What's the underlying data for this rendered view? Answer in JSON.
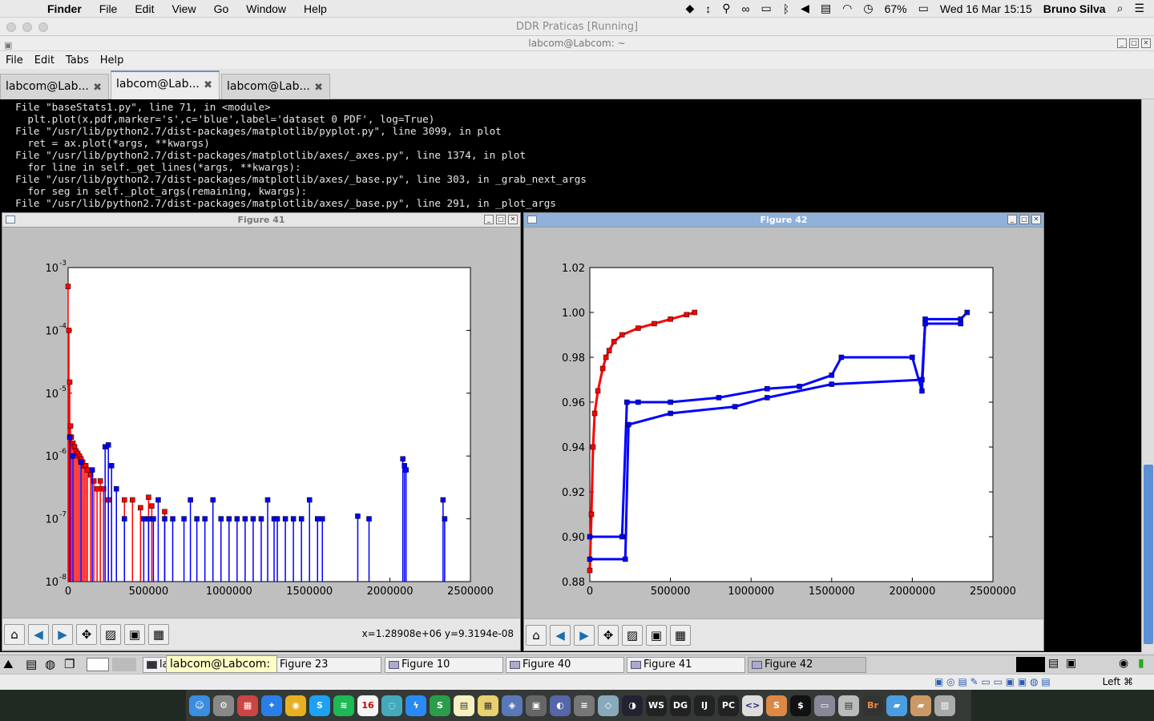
{
  "mac_menubar": {
    "app": "Finder",
    "items": [
      "File",
      "Edit",
      "View",
      "Go",
      "Window",
      "Help"
    ],
    "battery": "67%",
    "datetime": "Wed 16 Mar  15:15",
    "user": "Bruno Silva"
  },
  "vm_window": {
    "title": "DDR Praticas [Running]"
  },
  "terminal": {
    "title": "labcom@Labcom: ~",
    "menu": [
      "File",
      "Edit",
      "Tabs",
      "Help"
    ],
    "tabs": [
      {
        "label": "labcom@Lab..."
      },
      {
        "label": "labcom@Lab..."
      },
      {
        "label": "labcom@Lab..."
      }
    ],
    "lines": [
      "  File \"baseStats1.py\", line 71, in <module>",
      "    plt.plot(x,pdf,marker='s',c='blue',label='dataset 0 PDF', log=True)",
      "  File \"/usr/lib/python2.7/dist-packages/matplotlib/pyplot.py\", line 3099, in plot",
      "    ret = ax.plot(*args, **kwargs)",
      "  File \"/usr/lib/python2.7/dist-packages/matplotlib/axes/_axes.py\", line 1374, in plot",
      "    for line in self._get_lines(*args, **kwargs):",
      "  File \"/usr/lib/python2.7/dist-packages/matplotlib/axes/_base.py\", line 303, in _grab_next_args",
      "    for seg in self._plot_args(remaining, kwargs):",
      "  File \"/usr/lib/python2.7/dist-packages/matplotlib/axes/_base.py\", line 291, in _plot_args"
    ]
  },
  "figure41": {
    "title": "Figure 41",
    "coords": "x=1.28908e+06  y=9.3194e-08"
  },
  "figure42": {
    "title": "Figure 42"
  },
  "taskbar": {
    "items": [
      "labcom@Labcom: ~",
      "Figure 23",
      "Figure 10",
      "Figure 40",
      "Figure 41",
      "Figure 42"
    ],
    "tooltip": "labcom@Labcom: ~"
  },
  "statusbar": {
    "right_label": "Left ⌘"
  },
  "chart_data": [
    {
      "type": "scatter",
      "figure": "Figure 41",
      "yscale": "log",
      "xlim": [
        0,
        2500000
      ],
      "ylim": [
        1e-08,
        0.001
      ],
      "xticks": [
        "0",
        "500000",
        "1000000",
        "1500000",
        "2000000",
        "2500000"
      ],
      "yticks": [
        {
          "base": "10",
          "exp": "-3"
        },
        {
          "base": "10",
          "exp": "-4"
        },
        {
          "base": "10",
          "exp": "-5"
        },
        {
          "base": "10",
          "exp": "-6"
        },
        {
          "base": "10",
          "exp": "-7"
        },
        {
          "base": "10",
          "exp": "-8"
        }
      ],
      "series": [
        {
          "color": "#ff0000",
          "x": [
            0,
            5000,
            10000,
            15000,
            20000,
            30000,
            40000,
            50000,
            60000,
            70000,
            80000,
            90000,
            100000,
            110000,
            120000,
            140000,
            160000,
            180000,
            200000,
            220000,
            250000,
            300000,
            350000,
            400000,
            450000,
            500000,
            520000,
            600000
          ],
          "y": [
            0.0005,
            0.0001,
            1.5e-05,
            3e-06,
            2e-06,
            1.6e-06,
            1.4e-06,
            1.2e-06,
            1.1e-06,
            1e-06,
            9e-07,
            8e-07,
            7e-07,
            7e-07,
            6e-07,
            5e-07,
            4e-07,
            3e-07,
            4e-07,
            3e-07,
            2e-07,
            3e-07,
            2e-07,
            2e-07,
            1.5e-07,
            2.2e-07,
            1.6e-07,
            1.3e-07
          ]
        },
        {
          "color": "#0000ff",
          "x": [
            10000,
            30000,
            80000,
            150000,
            230000,
            250000,
            270000,
            300000,
            350000,
            470000,
            500000,
            530000,
            560000,
            600000,
            650000,
            720000,
            760000,
            800000,
            850000,
            900000,
            950000,
            1000000,
            1050000,
            1100000,
            1150000,
            1200000,
            1240000,
            1280000,
            1300000,
            1350000,
            1400000,
            1450000,
            1500000,
            1550000,
            1580000,
            1800000,
            1870000,
            2080000,
            2090000,
            2100000,
            2330000,
            2340000
          ],
          "y": [
            2e-06,
            1e-06,
            8e-07,
            6e-07,
            1.4e-06,
            1.5e-06,
            7e-07,
            3e-07,
            1e-07,
            1e-07,
            1e-07,
            1e-07,
            2e-07,
            1e-07,
            1e-07,
            1e-07,
            2e-07,
            1e-07,
            1e-07,
            2e-07,
            1e-07,
            1e-07,
            1e-07,
            1e-07,
            1e-07,
            1e-07,
            2e-07,
            1e-07,
            1e-07,
            1e-07,
            1e-07,
            1e-07,
            2e-07,
            1e-07,
            1e-07,
            1.1e-07,
            1e-07,
            9e-07,
            7e-07,
            6e-07,
            2e-07,
            1e-07
          ]
        }
      ]
    },
    {
      "type": "line",
      "figure": "Figure 42",
      "xlim": [
        0,
        2500000
      ],
      "ylim": [
        0.88,
        1.02
      ],
      "xticks": [
        "0",
        "500000",
        "1000000",
        "1500000",
        "2000000",
        "2500000"
      ],
      "yticks": [
        "1.02",
        "1.00",
        "0.98",
        "0.96",
        "0.94",
        "0.92",
        "0.90",
        "0.88"
      ],
      "series": [
        {
          "color": "#ff0000",
          "x": [
            0,
            10000,
            20000,
            30000,
            50000,
            80000,
            100000,
            120000,
            150000,
            200000,
            300000,
            400000,
            500000,
            600000,
            650000
          ],
          "y": [
            0.885,
            0.91,
            0.94,
            0.955,
            0.965,
            0.975,
            0.98,
            0.983,
            0.987,
            0.99,
            0.993,
            0.995,
            0.997,
            0.999,
            1.0
          ]
        },
        {
          "color": "#0000ff",
          "x": [
            0,
            200000,
            230000,
            300000,
            500000,
            800000,
            1100000,
            1300000,
            1500000,
            1560000,
            2000000,
            2060000,
            2080000,
            2300000,
            2340000
          ],
          "y": [
            0.9,
            0.9,
            0.96,
            0.96,
            0.96,
            0.962,
            0.966,
            0.967,
            0.972,
            0.98,
            0.98,
            0.965,
            0.997,
            0.997,
            1.0
          ]
        },
        {
          "color": "#0000ff",
          "x": [
            0,
            220000,
            240000,
            500000,
            900000,
            1100000,
            1500000,
            2060000,
            2080000,
            2300000
          ],
          "y": [
            0.89,
            0.89,
            0.95,
            0.955,
            0.958,
            0.962,
            0.968,
            0.97,
            0.995,
            0.995
          ]
        }
      ]
    }
  ]
}
